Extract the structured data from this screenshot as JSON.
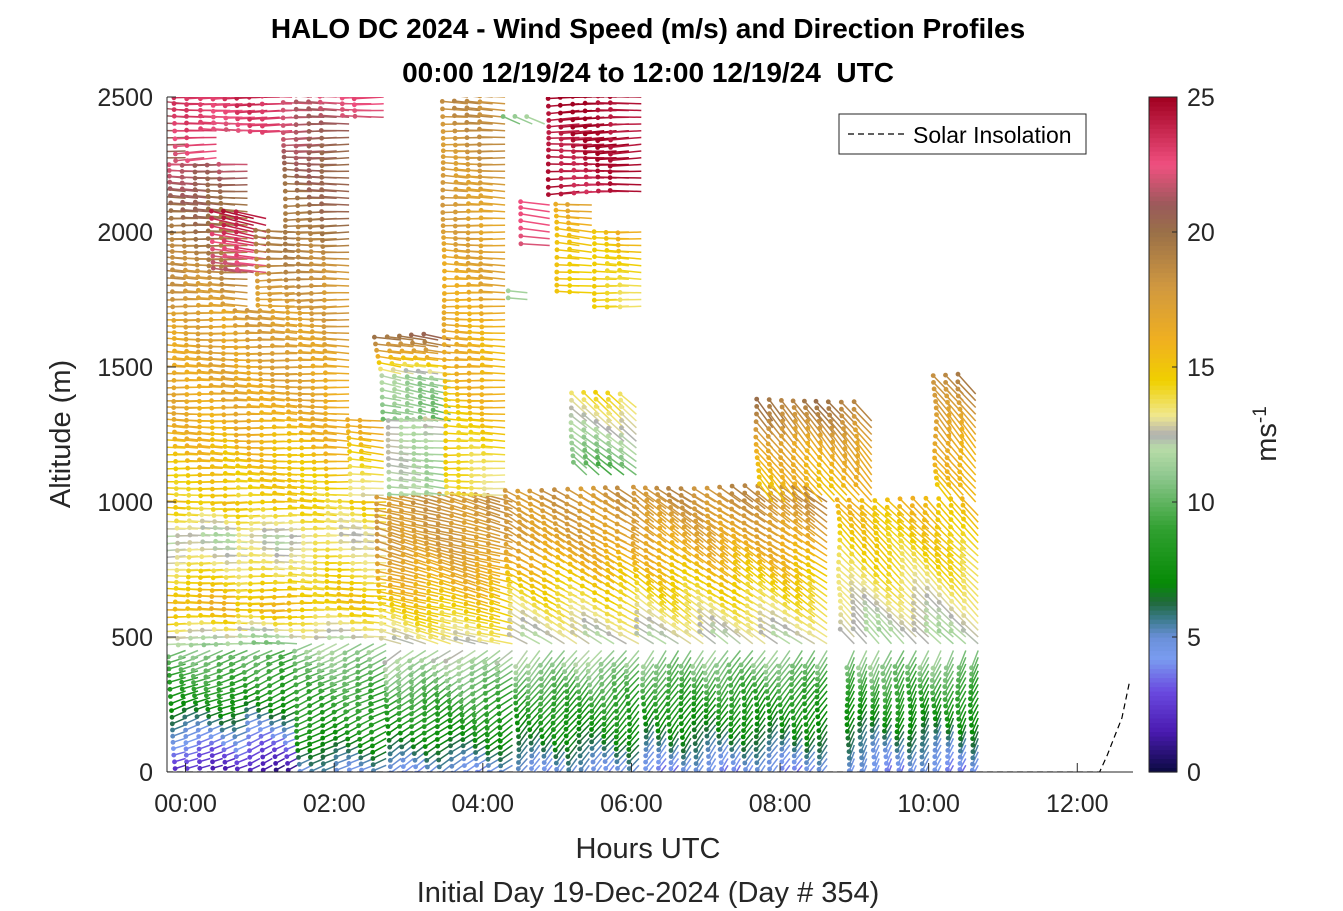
{
  "chart_data": {
    "type": "wind-barb-profile",
    "title": "HALO DC 2024 - Wind Speed (m/s) and Direction Profiles",
    "subtitle": "00:00 12/19/24 to 12:00 12/19/24  UTC",
    "xlabel": "Hours UTC",
    "xlabel_secondary": "Initial Day 19-Dec-2024 (Day # 354)",
    "ylabel": "Altitude (m)",
    "xlim": [
      -0.25,
      12.75
    ],
    "ylim": [
      0,
      2500
    ],
    "x_ticks": [
      0,
      2,
      4,
      6,
      8,
      10,
      12
    ],
    "x_tick_labels": [
      "00:00",
      "02:00",
      "04:00",
      "06:00",
      "08:00",
      "10:00",
      "12:00"
    ],
    "y_ticks": [
      0,
      500,
      1000,
      1500,
      2000,
      2500
    ],
    "y_tick_labels": [
      "0",
      "500",
      "1000",
      "1500",
      "2000",
      "2500"
    ],
    "colorbar": {
      "label": "ms",
      "label_exponent": "-1",
      "range": [
        0,
        25
      ],
      "ticks": [
        0,
        5,
        10,
        15,
        20,
        25
      ],
      "tick_labels": [
        "0",
        "5",
        "10",
        "15",
        "20",
        "25"
      ],
      "colormap": [
        {
          "v": 0,
          "c": "#0a0a40"
        },
        {
          "v": 1.5,
          "c": "#4a1ab0"
        },
        {
          "v": 3,
          "c": "#6a4ae0"
        },
        {
          "v": 4.2,
          "c": "#7a9cf0"
        },
        {
          "v": 5,
          "c": "#6a90d8"
        },
        {
          "v": 5.7,
          "c": "#3a7a8a"
        },
        {
          "v": 6.3,
          "c": "#206a3a"
        },
        {
          "v": 7,
          "c": "#068a06"
        },
        {
          "v": 9,
          "c": "#30a030"
        },
        {
          "v": 11,
          "c": "#90c890"
        },
        {
          "v": 12,
          "c": "#b8dca8"
        },
        {
          "v": 12.5,
          "c": "#b0b0b0"
        },
        {
          "v": 13.2,
          "c": "#f0e890"
        },
        {
          "v": 14.5,
          "c": "#f0d000"
        },
        {
          "v": 16,
          "c": "#f0b020"
        },
        {
          "v": 18,
          "c": "#d09840"
        },
        {
          "v": 20,
          "c": "#9a7048"
        },
        {
          "v": 21,
          "c": "#9a5a5a"
        },
        {
          "v": 22.5,
          "c": "#f05080"
        },
        {
          "v": 25,
          "c": "#a00020"
        }
      ]
    },
    "legend": {
      "entries": [
        "Solar Insolation"
      ],
      "placement": "top-right",
      "line_style": "dashed",
      "color": "#000000"
    },
    "solar_insolation": {
      "x": [
        -0.25,
        12.2,
        12.3,
        12.4,
        12.5,
        12.6,
        12.7
      ],
      "y": [
        0,
        0,
        0,
        60,
        130,
        200,
        330
      ]
    },
    "barb_spacing": {
      "time_step_h": 0.166667,
      "altitude_step_m": 25
    },
    "profiles": [
      {
        "t": [
          0.0,
          0.9
        ],
        "alt": [
          25,
          450
        ],
        "spd": [
          2.0,
          5.0,
          8.5,
          10.5
        ],
        "dir": 250
      },
      {
        "t": [
          0.0,
          0.9
        ],
        "alt": [
          475,
          1000
        ],
        "spd": [
          11.5,
          16.0,
          14.0,
          12.0,
          15.0
        ],
        "dir": 270
      },
      {
        "t": [
          0.0,
          0.9
        ],
        "alt": [
          1025,
          1700
        ],
        "spd": [
          14.5,
          16.5,
          17.0
        ],
        "dir": 272
      },
      {
        "t": [
          0.0,
          0.9
        ],
        "alt": [
          1725,
          2250
        ],
        "spd": [
          17.5,
          19.5,
          21.5
        ],
        "dir": 272
      },
      {
        "t": [
          0.0,
          0.1
        ],
        "alt": [
          2275,
          2500
        ],
        "spd": [
          20.0,
          22.5
        ],
        "dir": 272
      },
      {
        "t": [
          0.25,
          0.45
        ],
        "alt": [
          2275,
          2500
        ],
        "spd": [
          22.5,
          23.0
        ],
        "dir": 268
      },
      {
        "t": [
          0.75,
          1.2
        ],
        "alt": [
          1850,
          2050
        ],
        "spd": [
          22.0,
          24.0
        ],
        "dir": 280
      },
      {
        "t": [
          1.0,
          1.5
        ],
        "alt": [
          25,
          450
        ],
        "spd": [
          1.5,
          4.5,
          8.0,
          10.0
        ],
        "dir": 245
      },
      {
        "t": [
          1.0,
          1.5
        ],
        "alt": [
          475,
          1000
        ],
        "spd": [
          11.0,
          15.5,
          13.5,
          12.5,
          15.0
        ],
        "dir": 270
      },
      {
        "t": [
          1.0,
          1.5
        ],
        "alt": [
          1025,
          1700
        ],
        "spd": [
          14.5,
          16.5,
          17.5
        ],
        "dir": 272
      },
      {
        "t": [
          1.3,
          1.5
        ],
        "alt": [
          1725,
          2000
        ],
        "spd": [
          17.5,
          19.0
        ],
        "dir": 270
      },
      {
        "t": [
          0.6,
          1.5
        ],
        "alt": [
          2375,
          2500
        ],
        "spd": [
          22.5,
          23.5
        ],
        "dir": 270
      },
      {
        "t": [
          1.7,
          2.8
        ],
        "alt": [
          25,
          480
        ],
        "spd": [
          5.0,
          8.0,
          9.5,
          11.5
        ],
        "dir": 245
      },
      {
        "t": [
          1.7,
          2.8
        ],
        "alt": [
          500,
          1000
        ],
        "spd": [
          12.5,
          15.0,
          14.0,
          13.0,
          14.5
        ],
        "dir": 272
      },
      {
        "t": [
          1.7,
          2.3
        ],
        "alt": [
          1025,
          1700
        ],
        "spd": [
          14.5,
          16.5,
          17.5
        ],
        "dir": 272
      },
      {
        "t": [
          1.7,
          2.3
        ],
        "alt": [
          1725,
          2500
        ],
        "spd": [
          17.5,
          19.5,
          20.5,
          22.0
        ],
        "dir": 270
      },
      {
        "t": [
          2.5,
          2.8
        ],
        "alt": [
          1025,
          1300
        ],
        "spd": [
          13.5,
          16.0
        ],
        "dir": 275
      },
      {
        "t": [
          2.5,
          2.8
        ],
        "alt": [
          2425,
          2500
        ],
        "spd": [
          22.5,
          23.0
        ],
        "dir": 270
      },
      {
        "t": [
          2.9,
          3.6
        ],
        "alt": [
          1300,
          1600
        ],
        "spd": [
          10.5,
          11.5,
          20.0
        ],
        "dir": 280
      },
      {
        "t": [
          2.9,
          4.5
        ],
        "alt": [
          25,
          450
        ],
        "spd": [
          4.5,
          7.5,
          9.5,
          12.0
        ],
        "dir": 235
      },
      {
        "t": [
          2.9,
          4.5
        ],
        "alt": [
          475,
          1000
        ],
        "spd": [
          13.0,
          15.5,
          17.5,
          18.0
        ],
        "dir": 285
      },
      {
        "t": [
          3.0,
          3.6
        ],
        "alt": [
          1025,
          1300
        ],
        "spd": [
          11.5,
          12.5
        ],
        "dir": 275
      },
      {
        "t": [
          3.8,
          4.4
        ],
        "alt": [
          1025,
          2500
        ],
        "spd": [
          13.5,
          15.5,
          16.5,
          17.5,
          18.5
        ],
        "dir": 272
      },
      {
        "t": [
          4.5,
          4.9
        ],
        "alt": [
          2400,
          2420
        ],
        "spd": [
          11.0
        ],
        "dir": 290
      },
      {
        "t": [
          4.6,
          4.6
        ],
        "alt": [
          1750,
          1780
        ],
        "spd": [
          12.0
        ],
        "dir": 272
      },
      {
        "t": [
          4.6,
          6.2
        ],
        "alt": [
          25,
          450
        ],
        "spd": [
          4.5,
          7.0,
          9.0,
          11.5
        ],
        "dir": 220
      },
      {
        "t": [
          4.6,
          6.2
        ],
        "alt": [
          475,
          1000
        ],
        "spd": [
          12.5,
          14.5,
          17.0,
          18.0
        ],
        "dir": 300
      },
      {
        "t": [
          4.9,
          5.0
        ],
        "alt": [
          1950,
          2100
        ],
        "spd": [
          22.0
        ],
        "dir": 275
      },
      {
        "t": [
          5.3,
          5.6
        ],
        "alt": [
          1775,
          2100
        ],
        "spd": [
          14.5,
          16.5
        ],
        "dir": 275
      },
      {
        "t": [
          5.3,
          6.2
        ],
        "alt": [
          2150,
          2500
        ],
        "spd": [
          24.0,
          25.0
        ],
        "dir": 268
      },
      {
        "t": [
          5.4,
          6.2
        ],
        "alt": [
          1100,
          1350
        ],
        "spd": [
          10.0,
          14.0
        ],
        "dir": 310
      },
      {
        "t": [
          5.8,
          6.2
        ],
        "alt": [
          1725,
          2000
        ],
        "spd": [
          14.0,
          15.5
        ],
        "dir": 272
      },
      {
        "t": [
          6.3,
          8.8
        ],
        "alt": [
          25,
          450
        ],
        "spd": [
          4.0,
          6.5,
          8.5,
          11.0
        ],
        "dir": 215
      },
      {
        "t": [
          6.3,
          8.8
        ],
        "alt": [
          475,
          1000
        ],
        "spd": [
          12.5,
          14.5,
          16.5,
          18.5
        ],
        "dir": 305
      },
      {
        "t": [
          7.9,
          9.4
        ],
        "alt": [
          1000,
          1300
        ],
        "spd": [
          15.5,
          16.5,
          19.5
        ],
        "dir": 320
      },
      {
        "t": [
          9.0,
          10.8
        ],
        "alt": [
          25,
          450
        ],
        "spd": [
          4.0,
          6.0,
          8.5,
          11.0
        ],
        "dir": 205
      },
      {
        "t": [
          9.0,
          10.8
        ],
        "alt": [
          475,
          950
        ],
        "spd": [
          12.0,
          14.0,
          15.5
        ],
        "dir": 315
      },
      {
        "t": [
          10.3,
          10.8
        ],
        "alt": [
          1000,
          1400
        ],
        "spd": [
          15.0,
          16.5,
          19.0
        ],
        "dir": 320
      }
    ]
  }
}
